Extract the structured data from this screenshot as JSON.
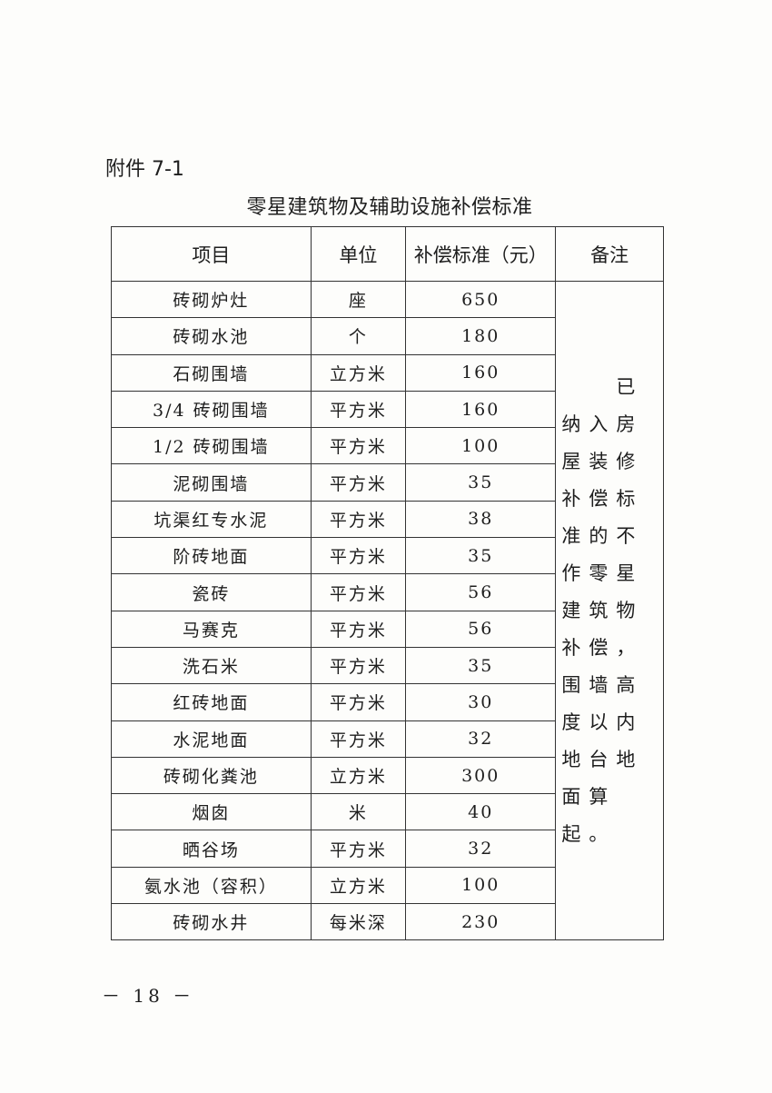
{
  "attachment_label": "附件 7-1",
  "title": "零星建筑物及辅助设施补偿标准",
  "table": {
    "headers": [
      "项目",
      "单位",
      "补偿标准（元）",
      "备注"
    ],
    "rows": [
      {
        "item": "砖砌炉灶",
        "unit": "座",
        "amount": "650"
      },
      {
        "item": "砖砌水池",
        "unit": "个",
        "amount": "180"
      },
      {
        "item": "石砌围墙",
        "unit": "立方米",
        "amount": "160"
      },
      {
        "item": "3/4 砖砌围墙",
        "unit": "平方米",
        "amount": "160"
      },
      {
        "item": "1/2 砖砌围墙",
        "unit": "平方米",
        "amount": "100"
      },
      {
        "item": "泥砌围墙",
        "unit": "平方米",
        "amount": "35"
      },
      {
        "item": "坑渠红专水泥",
        "unit": "平方米",
        "amount": "38"
      },
      {
        "item": "阶砖地面",
        "unit": "平方米",
        "amount": "35"
      },
      {
        "item": "瓷砖",
        "unit": "平方米",
        "amount": "56"
      },
      {
        "item": "马赛克",
        "unit": "平方米",
        "amount": "56"
      },
      {
        "item": "洗石米",
        "unit": "平方米",
        "amount": "35"
      },
      {
        "item": "红砖地面",
        "unit": "平方米",
        "amount": "30"
      },
      {
        "item": "水泥地面",
        "unit": "平方米",
        "amount": "32"
      },
      {
        "item": "砖砌化粪池",
        "unit": "立方米",
        "amount": "300"
      },
      {
        "item": "烟囱",
        "unit": "米",
        "amount": "40"
      },
      {
        "item": "晒谷场",
        "unit": "平方米",
        "amount": "32"
      },
      {
        "item": "氨水池（容积）",
        "unit": "立方米",
        "amount": "100"
      },
      {
        "item": "砖砌水井",
        "unit": "每米深",
        "amount": "230"
      }
    ],
    "remark": "　　已纳入房屋装修补偿标准的不作零星建筑物补偿，围墙高度以内地台地面算起。"
  },
  "page_number": "－ 18 －"
}
